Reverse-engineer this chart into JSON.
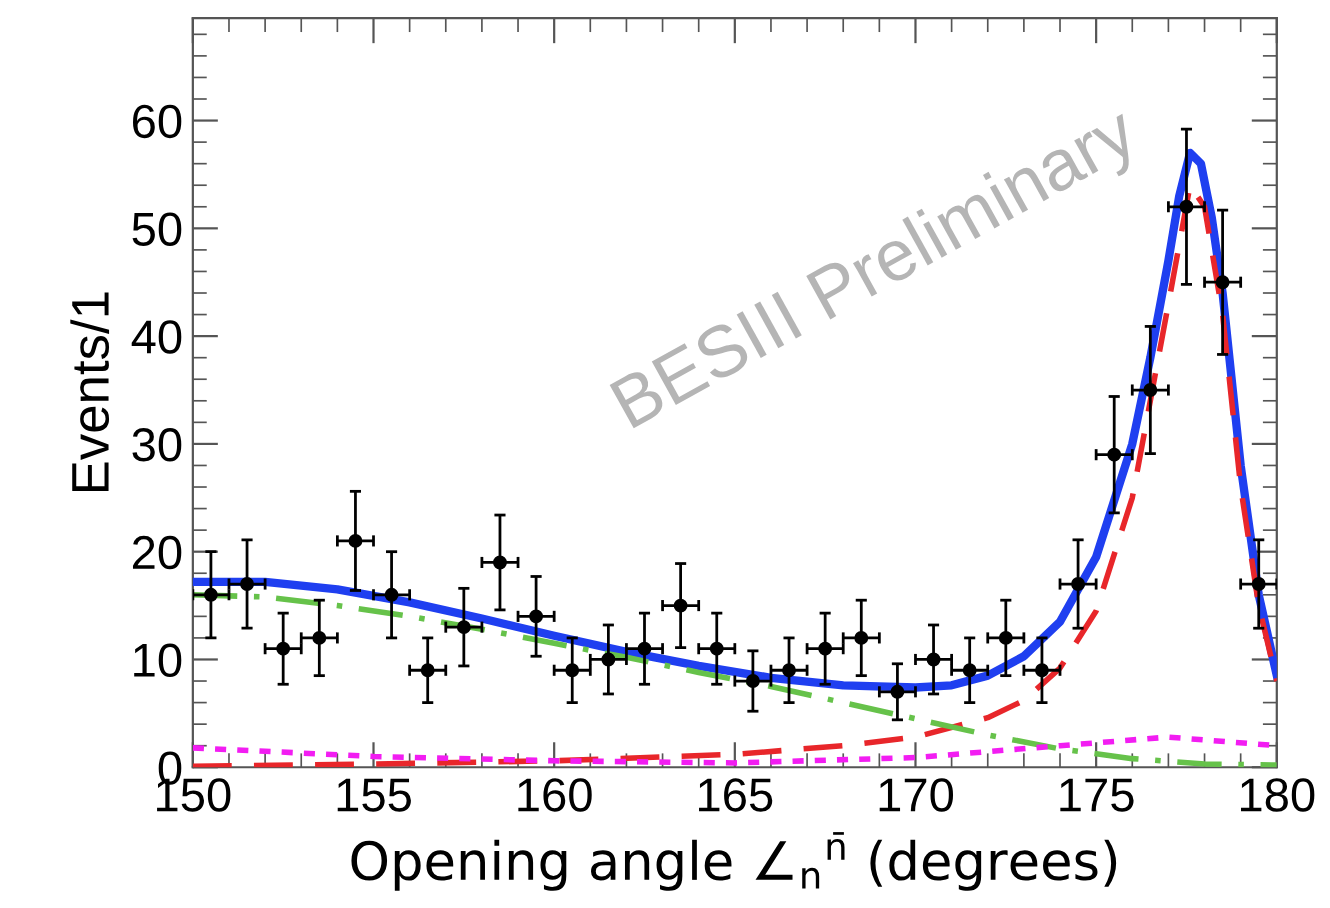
{
  "chart_data": {
    "type": "scatter",
    "xlabel": "Opening angle ∠$_{n}$$^{n̄}$ (degrees)",
    "ylabel": "Events/1",
    "xlim": [
      150,
      180
    ],
    "ylim": [
      0,
      69.5
    ],
    "xticks": [
      150,
      155,
      160,
      165,
      170,
      175,
      180
    ],
    "yticks": [
      0,
      10,
      20,
      30,
      40,
      50,
      60
    ],
    "grid": false,
    "legend": false,
    "annotations": [
      "BESIII Preliminary"
    ],
    "series": [
      {
        "color": "#000000",
        "marker": "circle",
        "x": [
          150.5,
          151.5,
          152.5,
          153.5,
          154.5,
          155.5,
          156.5,
          157.5,
          158.5,
          159.5,
          160.5,
          161.5,
          162.5,
          163.5,
          164.5,
          165.5,
          166.5,
          167.5,
          168.5,
          169.5,
          170.5,
          171.5,
          172.5,
          173.5,
          174.5,
          175.5,
          176.5,
          177.5,
          178.5,
          179.5
        ],
        "values": [
          16,
          17,
          11,
          12,
          21,
          16,
          9,
          13,
          19,
          14,
          9,
          10,
          11,
          15,
          11,
          8,
          9,
          11,
          12,
          7,
          10,
          9,
          12,
          9,
          17,
          29,
          35,
          52,
          45,
          17
        ],
        "errors": [
          4,
          4.1,
          3.3,
          3.5,
          4.6,
          4,
          3,
          3.6,
          4.4,
          3.7,
          3,
          3.2,
          3.3,
          3.9,
          3.3,
          2.8,
          3,
          3.3,
          3.5,
          2.6,
          3.2,
          3,
          3.5,
          3,
          4.1,
          5.4,
          5.9,
          7.2,
          6.7,
          4.1
        ],
        "xerrors": [
          0.5,
          0.5,
          0.5,
          0.5,
          0.5,
          0.5,
          0.5,
          0.5,
          0.5,
          0.5,
          0.5,
          0.5,
          0.5,
          0.5,
          0.5,
          0.5,
          0.5,
          0.5,
          0.5,
          0.5,
          0.5,
          0.5,
          0.5,
          0.5,
          0.5,
          0.5,
          0.5,
          0.5,
          0.5,
          0.5
        ]
      },
      {
        "type": "line",
        "color": "#1f3ff0",
        "line_style": "solid",
        "x": [
          150,
          152,
          154,
          156,
          158,
          160,
          162,
          164,
          166,
          168,
          170,
          171,
          172,
          173,
          174,
          175,
          176,
          176.5,
          177,
          177.3,
          177.6,
          177.9,
          178.2,
          178.5,
          179,
          179.5,
          180
        ],
        "values": [
          17.2,
          17.2,
          16.5,
          15.3,
          13.8,
          12.2,
          10.7,
          9.4,
          8.3,
          7.6,
          7.4,
          7.6,
          8.5,
          10.3,
          13.5,
          19.5,
          30,
          38,
          47,
          53,
          57,
          56,
          51,
          44,
          28,
          16,
          8.5
        ]
      },
      {
        "type": "line",
        "color": "#e8262a",
        "line_style": "dashed",
        "x": [
          150,
          155,
          160,
          165,
          168,
          170,
          172,
          173,
          174,
          175,
          176,
          177,
          177.6,
          178,
          178.5,
          179,
          179.5,
          180
        ],
        "values": [
          0.1,
          0.3,
          0.6,
          1.2,
          2,
          2.8,
          4.6,
          6.2,
          9.2,
          14.5,
          25,
          43,
          54,
          52,
          42,
          26,
          15,
          8
        ]
      },
      {
        "type": "line",
        "color": "#66c24a",
        "line_style": "dashdot",
        "x": [
          150,
          152,
          154,
          156,
          158,
          160,
          162,
          164,
          166,
          168,
          170,
          172,
          174,
          176,
          178,
          180
        ],
        "values": [
          16,
          15.8,
          15,
          14,
          12.8,
          11.5,
          10.2,
          8.8,
          7.5,
          6,
          4.5,
          3,
          1.7,
          0.8,
          0.3,
          0.2
        ]
      },
      {
        "type": "line",
        "color": "#f21df2",
        "line_style": "dotted",
        "x": [
          150,
          155,
          160,
          165,
          170,
          174,
          177,
          180
        ],
        "values": [
          1.8,
          1.0,
          0.6,
          0.4,
          0.9,
          2.0,
          2.8,
          2.0
        ]
      }
    ]
  }
}
